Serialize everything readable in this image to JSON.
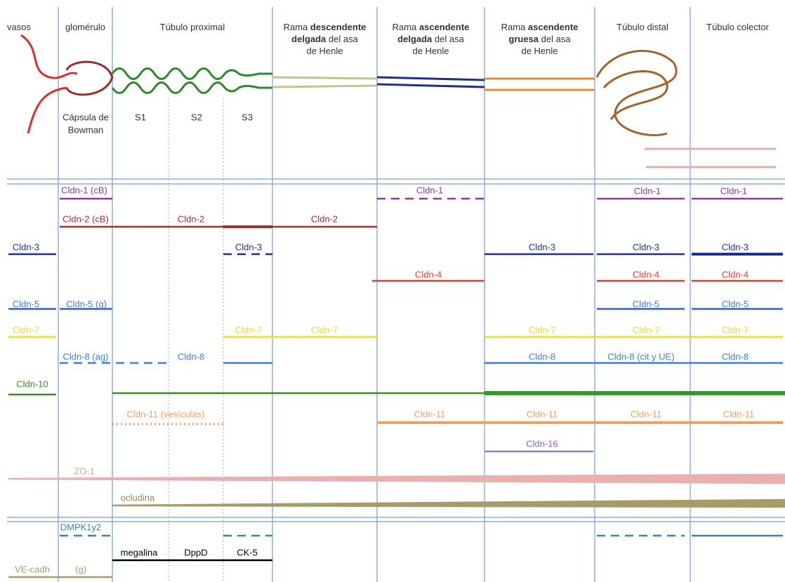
{
  "columns": [
    {
      "lines": [
        [
          {
            "t": "vasos"
          }
        ]
      ]
    },
    {
      "lines": [
        [
          {
            "t": "glomérulo"
          }
        ]
      ]
    },
    {
      "lines": [
        [
          {
            "t": "Túbulo proximal"
          }
        ]
      ]
    },
    {
      "lines": [
        [
          {
            "t": "Rama "
          },
          {
            "t": "descendente",
            "b": true
          }
        ],
        [
          {
            "t": "delgada",
            "b": true
          },
          {
            "t": " del asa"
          }
        ],
        [
          {
            "t": "de Henle"
          }
        ]
      ]
    },
    {
      "lines": [
        [
          {
            "t": "Rama "
          },
          {
            "t": "ascendente",
            "b": true
          }
        ],
        [
          {
            "t": "delgada",
            "b": true
          },
          {
            "t": " del asa"
          }
        ],
        [
          {
            "t": "de Henle"
          }
        ]
      ]
    },
    {
      "lines": [
        [
          {
            "t": "Rama "
          },
          {
            "t": "ascendente",
            "b": true
          }
        ],
        [
          {
            "t": "gruesa",
            "b": true
          },
          {
            "t": " del asa"
          }
        ],
        [
          {
            "t": "de Henle"
          }
        ]
      ]
    },
    {
      "lines": [
        [
          {
            "t": "Túbulo distal"
          }
        ]
      ]
    },
    {
      "lines": [
        [
          {
            "t": "Túbulo colector"
          }
        ]
      ]
    }
  ],
  "sublabels": [
    "Cápsula de",
    "Bowman",
    "S1",
    "S2",
    "S3"
  ],
  "markers": [
    "Cldn-1 (cB)",
    "Cldn-1",
    "Cldn-1",
    "Cldn-1",
    "Cldn-2 (cB)",
    "Cldn-2",
    "Cldn-2",
    "Cldn-3",
    "Cldn-3",
    "Cldn-3",
    "Cldn-3",
    "Cldn-3",
    "Cldn-4",
    "Cldn-4",
    "Cldn-4",
    "Cldn-5",
    "Cldn-5 (g)",
    "Cldn-5",
    "Cldn-5",
    "Cldn-7",
    "Cldn-7",
    "Cldn-7",
    "Cldn-7",
    "Cldn-7",
    "Cldn-7",
    "Cldn-8 (ag)",
    "Cldn-8",
    "Cldn-8",
    "Cldn-8 (cit y UE)",
    "Cldn-8",
    "Cldn-10",
    "Cldn-11 (vesículas)",
    "Cldn-11",
    "Cldn-11",
    "Cldn-11",
    "Cldn-11",
    "Cldn-16",
    "ZO-1",
    "ocludina",
    "DMPK1y2",
    "megalina",
    "DppD",
    "CK-5",
    "VE-cadh",
    "(g)"
  ]
}
